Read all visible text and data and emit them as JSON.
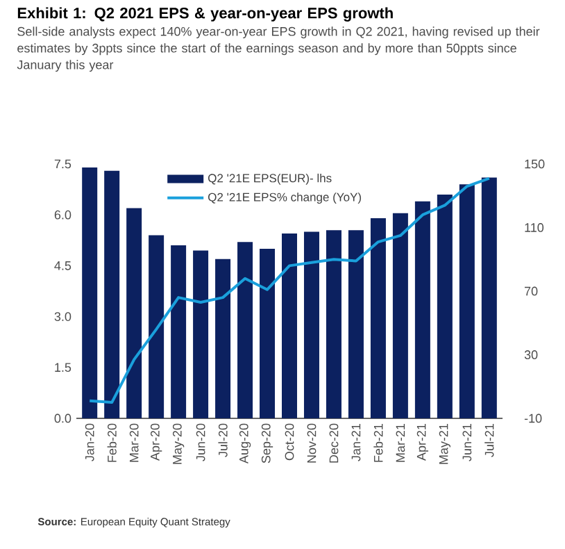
{
  "chart_data": {
    "type": "bar",
    "title": "Exhibit 1: Q2 2021 EPS & year-on-year EPS growth",
    "subtitle": "Sell-side analysts expect 140% year-on-year EPS growth in Q2 2021, having revised up their estimates by 3ppts since the start of the earnings season and by more than 50ppts since January this year",
    "categories": [
      "Jan-20",
      "Feb-20",
      "Mar-20",
      "Apr-20",
      "May-20",
      "Jun-20",
      "Jul-20",
      "Aug-20",
      "Sep-20",
      "Oct-20",
      "Nov-20",
      "Dec-20",
      "Jan-21",
      "Feb-21",
      "Mar-21",
      "Apr-21",
      "May-21",
      "Jun-21",
      "Jul-21"
    ],
    "series": [
      {
        "name": "Q2 '21E EPS(EUR)- lhs",
        "color": "#0c2160",
        "values": [
          7.4,
          7.3,
          6.2,
          5.4,
          5.1,
          4.95,
          4.7,
          5.2,
          5.0,
          5.45,
          5.5,
          5.55,
          5.55,
          5.9,
          6.05,
          6.4,
          6.6,
          6.9,
          7.1
        ]
      },
      {
        "name": "Q2 '21E EPS% change (YoY)",
        "type": "line",
        "axis": "y2",
        "color": "#1aa0dc",
        "values": [
          1,
          0,
          27,
          46,
          66,
          63,
          66,
          78,
          71,
          86,
          88,
          90,
          89,
          101,
          105,
          118,
          124,
          136,
          141
        ]
      }
    ],
    "ylim": [
      0,
      7.5
    ],
    "yticks": [
      {
        "value": 0,
        "label": "0.0"
      },
      1.5,
      {
        "value": 3,
        "label": "3.0"
      },
      4.5,
      {
        "value": 6,
        "label": "6.0"
      },
      7.5
    ],
    "y2lim": [
      -10,
      150
    ],
    "y2ticks": [
      -10,
      30,
      70,
      110,
      150
    ],
    "legend": "top",
    "annotations": [
      "**Source:** European Equity Quant Strategy"
    ]
  }
}
